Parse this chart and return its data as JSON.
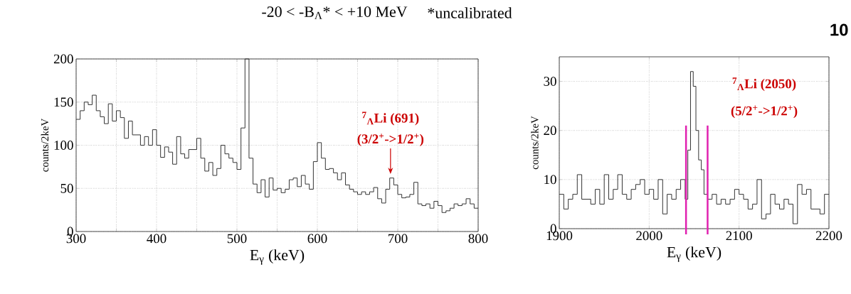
{
  "chart_data": [
    {
      "type": "step",
      "title": "-20 < -B$_{Λ}$* < +10 MeV",
      "xlabel": "E$_{γ}$   (keV)",
      "ylabel": "counts/2keV",
      "color": "#333333",
      "grid": true,
      "xlim": [
        300,
        800
      ],
      "ylim": [
        0,
        200
      ],
      "xticks": [
        300,
        {
          "value": 350,
          "label": null
        },
        400,
        {
          "value": 450,
          "label": null
        },
        500,
        {
          "value": 550,
          "label": null
        },
        600,
        {
          "value": 650,
          "label": null
        },
        700,
        {
          "value": 750,
          "label": null
        },
        800
      ],
      "yticks": [
        0,
        50,
        100,
        150,
        200
      ],
      "x": [
        300,
        305,
        310,
        315,
        320,
        325,
        330,
        335,
        340,
        345,
        350,
        355,
        360,
        365,
        370,
        375,
        380,
        385,
        390,
        395,
        400,
        405,
        410,
        415,
        420,
        425,
        430,
        435,
        440,
        445,
        450,
        455,
        460,
        465,
        470,
        475,
        480,
        485,
        490,
        495,
        500,
        505,
        510,
        515,
        520,
        525,
        530,
        535,
        540,
        545,
        550,
        555,
        560,
        565,
        570,
        575,
        580,
        585,
        590,
        595,
        600,
        605,
        610,
        615,
        620,
        625,
        630,
        635,
        640,
        645,
        650,
        655,
        660,
        665,
        670,
        675,
        680,
        685,
        690,
        695,
        700,
        705,
        710,
        715,
        720,
        725,
        730,
        735,
        740,
        745,
        750,
        755,
        760,
        765,
        770,
        775,
        780,
        785,
        790,
        795,
        800
      ],
      "values": [
        130,
        140,
        150,
        147,
        158,
        140,
        133,
        125,
        148,
        128,
        140,
        132,
        108,
        128,
        112,
        112,
        100,
        110,
        100,
        118,
        100,
        86,
        98,
        92,
        78,
        110,
        90,
        85,
        95,
        95,
        108,
        85,
        70,
        80,
        65,
        73,
        100,
        90,
        85,
        80,
        72,
        120,
        200,
        85,
        55,
        45,
        60,
        40,
        62,
        48,
        50,
        45,
        49,
        60,
        62,
        52,
        65,
        55,
        49,
        81,
        103,
        85,
        72,
        73,
        68,
        60,
        68,
        54,
        49,
        46,
        43,
        46,
        43,
        46,
        51,
        38,
        33,
        49,
        62,
        54,
        43,
        39,
        40,
        43,
        57,
        32,
        30,
        32,
        27,
        35,
        30,
        22,
        24,
        27,
        32,
        30,
        32,
        38,
        32,
        27,
        27
      ],
      "annotations": [
        {
          "text": "(3/2$^{+}$->1/2$^{+}$)",
          "x": 691,
          "y": 65
        },
        "$^{7}$$_{Λ}$Li (691)",
        "*uncalibrated"
      ]
    },
    {
      "type": "step",
      "xlabel": "E$_{γ}$   (keV)",
      "ylabel": "counts/2keV",
      "color": "#333333",
      "grid": true,
      "xlim": [
        1900,
        2200
      ],
      "ylim": [
        0,
        35
      ],
      "xticks": [
        1900,
        2000,
        2100,
        2200
      ],
      "yticks": [
        0,
        10,
        20,
        30
      ],
      "x": [
        1900,
        1905,
        1910,
        1915,
        1920,
        1925,
        1930,
        1935,
        1940,
        1945,
        1950,
        1955,
        1960,
        1965,
        1970,
        1975,
        1980,
        1985,
        1990,
        1995,
        2000,
        2005,
        2010,
        2015,
        2020,
        2025,
        2030,
        2035,
        2040,
        2043,
        2046,
        2049,
        2052,
        2055,
        2058,
        2061,
        2065,
        2070,
        2075,
        2080,
        2085,
        2090,
        2095,
        2100,
        2105,
        2110,
        2115,
        2120,
        2125,
        2130,
        2135,
        2140,
        2145,
        2150,
        2155,
        2160,
        2165,
        2170,
        2175,
        2180,
        2185,
        2190,
        2195,
        2200
      ],
      "values": [
        7,
        4,
        6,
        7,
        11,
        6,
        6,
        5,
        8,
        5,
        11,
        6,
        8,
        11,
        7,
        6,
        8,
        9,
        10,
        7,
        8,
        6,
        10,
        3,
        7,
        6,
        8,
        10,
        6,
        16,
        32,
        29,
        20,
        14,
        12,
        7,
        6,
        7,
        5,
        6,
        5,
        6,
        8,
        7,
        6,
        4,
        5,
        10,
        2,
        3,
        7,
        5,
        4,
        6,
        5,
        1,
        9,
        7,
        8,
        4,
        4,
        3,
        7,
        7
      ],
      "ref_lines": [
        {
          "axis": "x",
          "value": 2041,
          "color": "#e020b0"
        },
        {
          "axis": "x",
          "value": 2065,
          "color": "#e020b0"
        }
      ],
      "annotations": [
        "$^{7}$$_{Λ}$Li (2050)",
        "(5/2$^{+}$->1/2$^{+}$)",
        "10"
      ]
    }
  ]
}
